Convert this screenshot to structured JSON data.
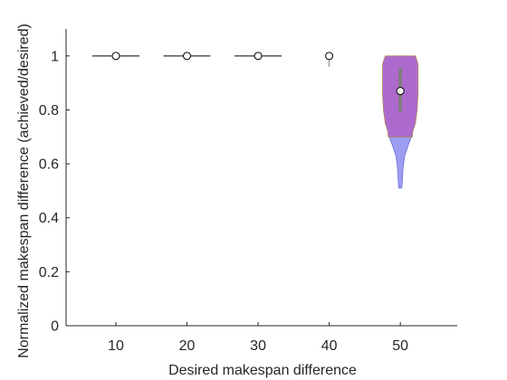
{
  "chart_data": {
    "type": "violin",
    "title": "",
    "xlabel": "Desired makespan difference",
    "ylabel": "Normalized makespan difference (achieved/desired)",
    "categories": [
      "10",
      "20",
      "30",
      "40",
      "50"
    ],
    "x": [
      10,
      20,
      30,
      40,
      50
    ],
    "xlim": [
      3,
      58
    ],
    "ylim": [
      0,
      1.1
    ],
    "yticks": [
      0,
      0.2,
      0.4,
      0.6,
      0.8,
      1
    ],
    "ytick_labels": [
      "0",
      "0.2",
      "0.4",
      "0.6",
      "0.8",
      "1"
    ],
    "grid": false,
    "groups": [
      {
        "x": 10,
        "median": 1.0,
        "q1": 1.0,
        "q3": 1.0,
        "min": 1.0,
        "max": 1.0,
        "shape": "flat"
      },
      {
        "x": 20,
        "median": 1.0,
        "q1": 1.0,
        "q3": 1.0,
        "min": 1.0,
        "max": 1.0,
        "shape": "flat"
      },
      {
        "x": 30,
        "median": 1.0,
        "q1": 1.0,
        "q3": 1.0,
        "min": 1.0,
        "max": 1.0,
        "shape": "flat"
      },
      {
        "x": 40,
        "median": 1.0,
        "q1": 1.0,
        "q3": 1.0,
        "min": 0.96,
        "max": 1.0,
        "shape": "point"
      },
      {
        "x": 50,
        "median": 0.87,
        "q1": 0.8,
        "q3": 0.95,
        "min": 0.51,
        "max": 1.0,
        "shape": "split",
        "upper_density": [
          [
            1.0,
            0.85
          ],
          [
            0.97,
            1.0
          ],
          [
            0.92,
            1.0
          ],
          [
            0.86,
            1.0
          ],
          [
            0.8,
            0.95
          ],
          [
            0.75,
            0.85
          ],
          [
            0.72,
            0.7
          ],
          [
            0.7,
            0.68
          ]
        ],
        "lower_density": [
          [
            0.7,
            0.62
          ],
          [
            0.67,
            0.45
          ],
          [
            0.63,
            0.25
          ],
          [
            0.6,
            0.18
          ],
          [
            0.57,
            0.14
          ],
          [
            0.54,
            0.12
          ],
          [
            0.52,
            0.1
          ],
          [
            0.51,
            0.08
          ]
        ],
        "half_width_units": 2.5
      }
    ],
    "colors": {
      "upper_fill": "#a45ac9",
      "lower_fill": "#8c8cf0",
      "whisker": "#7f7f7f",
      "median_marker": "#ffffff",
      "axis": "#262626"
    }
  }
}
